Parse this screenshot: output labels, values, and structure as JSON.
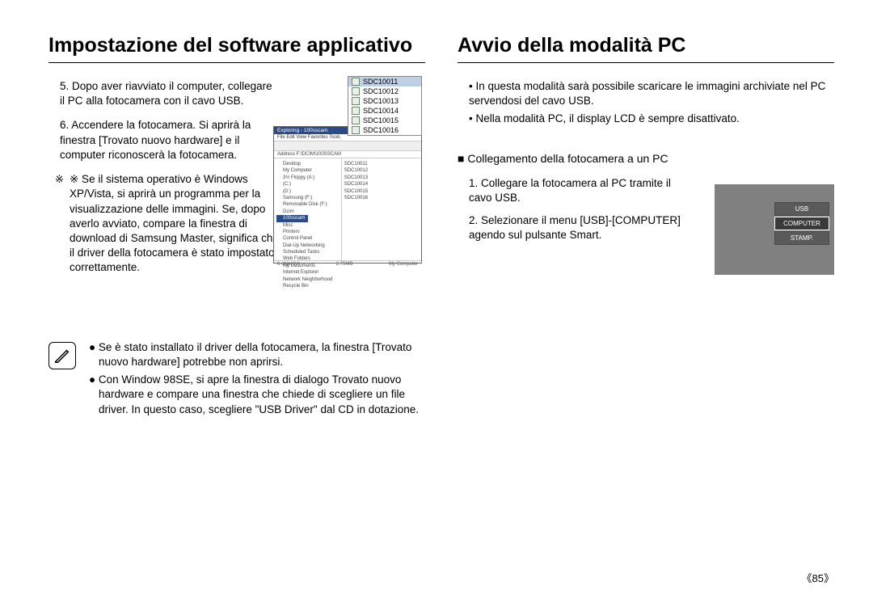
{
  "left": {
    "heading": "Impostazione del software applicativo",
    "step5": "5. Dopo aver riavviato il computer, collegare il PC alla fotocamera con il cavo USB.",
    "step6": "6. Accendere la fotocamera. Si aprirà la finestra [Trovato nuovo hardware] e il computer riconoscerà la fotocamera.",
    "note_cross": "※ Se il sistema operativo è Windows XP/Vista, si aprirà un programma per la visualizzazione delle immagini. Se, dopo averlo avviato, compare la finestra di download di Samsung Master, significa che il driver della fotocamera è stato impostato correttamente.",
    "file_list": [
      "SDC10011",
      "SDC10012",
      "SDC10013",
      "SDC10014",
      "SDC10015",
      "SDC10016"
    ],
    "explorer": {
      "title": "Exploring - 100sscam",
      "menubar": "File  Edit  View  Favorites  Tools",
      "address": "Address  F:\\DCIM\\100SSCAM",
      "tree_items": [
        "Desktop",
        "My Computer",
        "3½ Floppy (A:)",
        "(C:)",
        "(D:)",
        "Samsung (F:)",
        "Removable Disk (F:)",
        "Dcim",
        "100sscam",
        "Misc",
        "Printers",
        "Control Panel",
        "Dial-Up Networking",
        "Scheduled Tasks",
        "Web Folders",
        "My Documents",
        "Internet Explorer",
        "Network Neighborhood",
        "Recycle Bin"
      ],
      "tree_sel_index": 8,
      "right_items": [
        "SDC10011",
        "SDC10012",
        "SDC10013",
        "SDC10014",
        "SDC10015",
        "SDC10016"
      ],
      "status_left": "6 object(s)",
      "status_mid": "2.75MB",
      "status_right": "My Computer"
    },
    "info_bullets": [
      "Se è stato installato il driver della fotocamera, la finestra [Trovato nuovo hardware] potrebbe non aprirsi.",
      "Con Window 98SE, si apre la finestra di dialogo Trovato nuovo hardware e compare una finestra che chiede di scegliere un file driver. In questo caso, scegliere \"USB Driver\" dal CD in dotazione."
    ]
  },
  "right": {
    "heading": "Avvio della modalità PC",
    "bullet1": "In questa modalità sarà possibile scaricare le immagini archiviate nel PC servendosi del cavo USB.",
    "bullet2": "Nella modalità PC, il display LCD è sempre disattivato.",
    "subhead": "■ Collegamento della fotocamera a un PC",
    "step1": "1. Collegare la fotocamera al PC tramite il cavo USB.",
    "step2": "2. Selezionare il menu [USB]-[COMPUTER] agendo sul pulsante Smart.",
    "lcd_menu": [
      "USB",
      "COMPUTER",
      "STAMP."
    ],
    "lcd_sel_index": 1
  },
  "pagenum": "《85》"
}
